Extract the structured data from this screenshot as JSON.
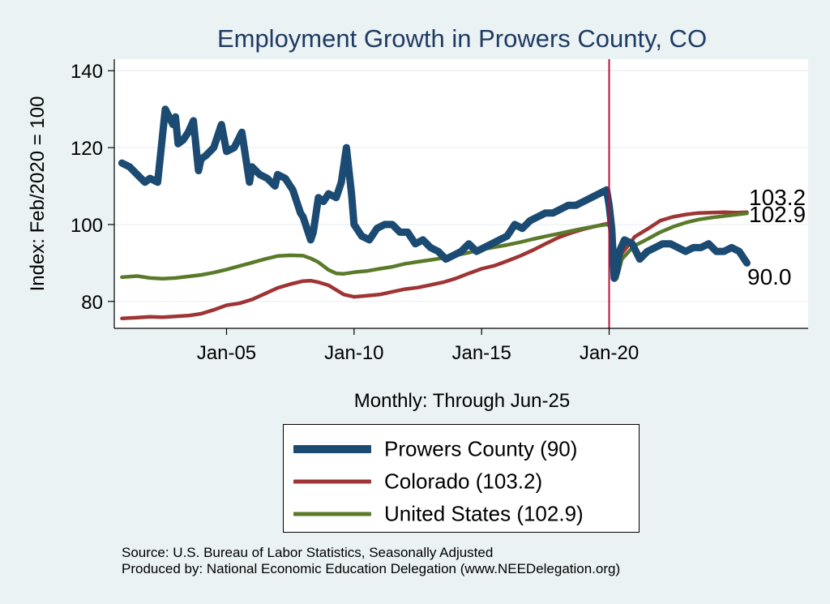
{
  "chart_data": {
    "type": "line",
    "title": "Employment Growth in Prowers  County, CO",
    "xlabel": "Monthly: Through Jun-25",
    "ylabel": "Index: Feb/2020 = 100",
    "ylim": [
      73,
      143
    ],
    "xlim": [
      2000.6,
      2027.8
    ],
    "yticks": [
      80,
      100,
      120,
      140
    ],
    "xticks": [
      {
        "value": 2005.0,
        "label": "Jan-05"
      },
      {
        "value": 2010.0,
        "label": "Jan-10"
      },
      {
        "value": 2015.0,
        "label": "Jan-15"
      },
      {
        "value": 2020.0,
        "label": "Jan-20"
      }
    ],
    "vline": {
      "x": 2020.0,
      "color": "#b5123a"
    },
    "grid": true,
    "legend_position": "bottom",
    "series": [
      {
        "name": "Prowers  County (90)",
        "color": "#1b4a72",
        "end_label": "90.0",
        "x": [
          2000.9,
          2001.2,
          2001.5,
          2001.8,
          2002.0,
          2002.3,
          2002.6,
          2002.9,
          2003.0,
          2003.1,
          2003.3,
          2003.5,
          2003.7,
          2003.9,
          2004.0,
          2004.2,
          2004.5,
          2004.8,
          2005.0,
          2005.3,
          2005.6,
          2005.9,
          2006.0,
          2006.3,
          2006.6,
          2006.9,
          2007.0,
          2007.3,
          2007.6,
          2007.9,
          2008.0,
          2008.3,
          2008.4,
          2008.6,
          2008.8,
          2009.0,
          2009.3,
          2009.5,
          2009.7,
          2009.9,
          2010.0,
          2010.3,
          2010.6,
          2010.9,
          2011.2,
          2011.5,
          2011.8,
          2012.1,
          2012.4,
          2012.7,
          2013.0,
          2013.3,
          2013.6,
          2013.9,
          2014.2,
          2014.5,
          2014.8,
          2015.1,
          2015.4,
          2015.7,
          2016.0,
          2016.3,
          2016.6,
          2016.9,
          2017.2,
          2017.5,
          2017.8,
          2018.1,
          2018.4,
          2018.7,
          2019.0,
          2019.3,
          2019.6,
          2019.9,
          2020.0,
          2020.1,
          2020.2,
          2020.3,
          2020.4,
          2020.6,
          2020.9,
          2021.2,
          2021.5,
          2021.8,
          2022.1,
          2022.4,
          2022.7,
          2023.0,
          2023.3,
          2023.6,
          2023.9,
          2024.2,
          2024.5,
          2024.8,
          2025.1,
          2025.4
        ],
        "values": [
          116,
          115,
          113,
          111,
          112,
          111,
          130,
          126,
          128,
          121,
          122,
          124,
          127,
          114,
          117,
          118,
          120,
          126,
          119,
          120,
          124,
          111,
          115,
          113,
          112,
          110,
          113,
          112,
          109,
          103,
          102,
          96,
          98,
          107,
          106,
          108,
          107,
          111,
          120,
          108,
          100,
          97,
          96,
          99,
          100,
          100,
          98,
          98,
          95,
          96,
          94,
          93,
          91,
          92,
          93,
          95,
          93,
          94,
          95,
          96,
          97,
          100,
          99,
          101,
          102,
          103,
          103,
          104,
          105,
          105,
          106,
          107,
          108,
          109,
          105,
          99,
          86,
          88,
          93,
          96,
          95,
          91,
          93,
          94,
          95,
          95,
          94,
          93,
          94,
          94,
          95,
          93,
          93,
          94,
          93,
          90
        ]
      },
      {
        "name": "Colorado (103.2)",
        "color": "#9e3434",
        "end_label": "103.2",
        "x": [
          2000.9,
          2001.5,
          2002.0,
          2002.5,
          2003.0,
          2003.5,
          2004.0,
          2004.5,
          2005.0,
          2005.5,
          2006.0,
          2006.5,
          2007.0,
          2007.5,
          2008.0,
          2008.3,
          2008.6,
          2009.0,
          2009.3,
          2009.6,
          2010.0,
          2010.5,
          2011.0,
          2011.5,
          2012.0,
          2012.5,
          2013.0,
          2013.5,
          2014.0,
          2014.5,
          2015.0,
          2015.5,
          2016.0,
          2016.5,
          2017.0,
          2017.5,
          2018.0,
          2018.5,
          2019.0,
          2019.5,
          2019.9,
          2020.1,
          2020.2,
          2020.3,
          2020.5,
          2020.8,
          2021.0,
          2021.5,
          2022.0,
          2022.5,
          2023.0,
          2023.5,
          2024.0,
          2024.5,
          2025.0,
          2025.4
        ],
        "values": [
          75.6,
          75.8,
          76.0,
          75.9,
          76.1,
          76.3,
          76.8,
          77.8,
          79.0,
          79.5,
          80.5,
          82.0,
          83.5,
          84.5,
          85.3,
          85.4,
          85.0,
          84.2,
          83.0,
          81.8,
          81.2,
          81.5,
          81.8,
          82.5,
          83.2,
          83.6,
          84.3,
          85.0,
          86.0,
          87.3,
          88.5,
          89.3,
          90.5,
          91.8,
          93.3,
          95.0,
          96.6,
          97.8,
          98.8,
          99.6,
          100.2,
          100.0,
          91.0,
          87.5,
          92.5,
          95.0,
          96.8,
          98.8,
          101.0,
          102.0,
          102.6,
          103.0,
          103.1,
          103.2,
          103.1,
          103.2
        ]
      },
      {
        "name": "United States (102.9)",
        "color": "#5a7a2a",
        "end_label": "102.9",
        "x": [
          2000.9,
          2001.5,
          2002.0,
          2002.5,
          2003.0,
          2003.5,
          2004.0,
          2004.5,
          2005.0,
          2005.5,
          2006.0,
          2006.5,
          2007.0,
          2007.5,
          2008.0,
          2008.3,
          2008.6,
          2009.0,
          2009.3,
          2009.6,
          2010.0,
          2010.5,
          2011.0,
          2011.5,
          2012.0,
          2012.5,
          2013.0,
          2013.5,
          2014.0,
          2014.5,
          2015.0,
          2015.5,
          2016.0,
          2016.5,
          2017.0,
          2017.5,
          2018.0,
          2018.5,
          2019.0,
          2019.5,
          2019.9,
          2020.1,
          2020.2,
          2020.3,
          2020.5,
          2020.8,
          2021.0,
          2021.5,
          2022.0,
          2022.5,
          2023.0,
          2023.5,
          2024.0,
          2024.5,
          2025.0,
          2025.4
        ],
        "values": [
          86.3,
          86.6,
          86.1,
          85.9,
          86.1,
          86.5,
          86.9,
          87.5,
          88.3,
          89.2,
          90.1,
          91.0,
          91.8,
          92.0,
          91.9,
          91.2,
          90.2,
          88.2,
          87.3,
          87.2,
          87.6,
          87.9,
          88.5,
          89.0,
          89.8,
          90.3,
          90.8,
          91.3,
          92.0,
          92.7,
          93.5,
          94.1,
          94.7,
          95.4,
          96.2,
          96.9,
          97.6,
          98.3,
          99.0,
          99.6,
          100.0,
          99.5,
          87.2,
          86.0,
          91.0,
          93.2,
          94.5,
          96.2,
          98.0,
          99.4,
          100.5,
          101.3,
          101.8,
          102.2,
          102.6,
          102.9
        ]
      }
    ]
  },
  "source_line1": "Source: U.S. Bureau of Labor Statistics, Seasonally Adjusted",
  "source_line2": "Produced by: National Economic Education Delegation (www.NEEDelegation.org)"
}
